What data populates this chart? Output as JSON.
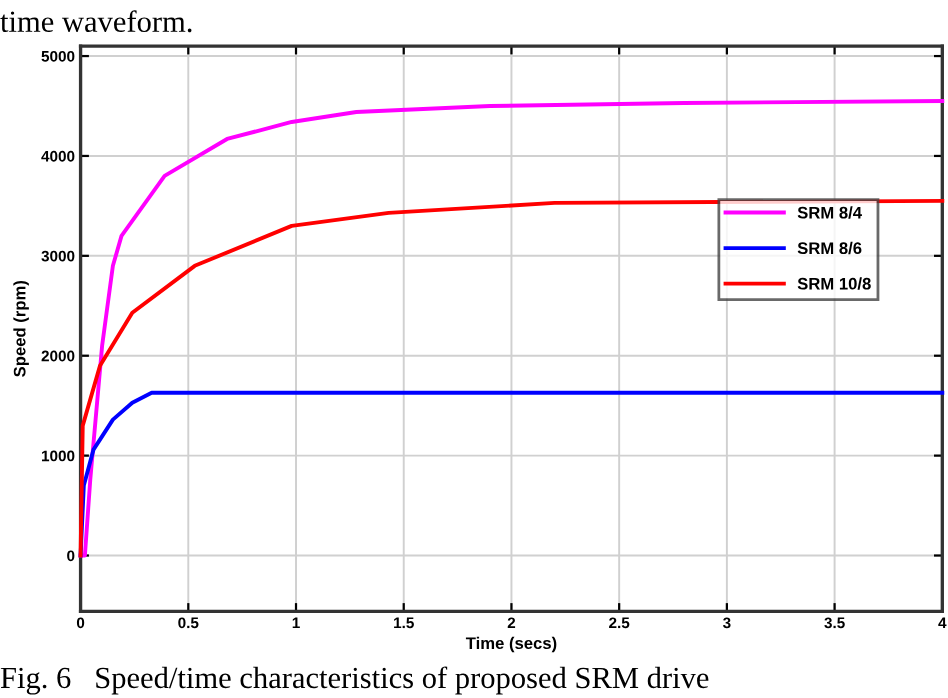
{
  "chart_data": {
    "type": "line",
    "xlabel": "Time (secs)",
    "ylabel": "Speed (rpm)",
    "xlim": [
      0,
      4
    ],
    "ylim": [
      -560,
      5100
    ],
    "xticks": [
      0,
      {
        "value": 0.5,
        "label": "0.5"
      },
      1,
      {
        "value": 1.5,
        "label": "1.5"
      },
      2,
      {
        "value": 2.5,
        "label": "2.5"
      },
      3,
      {
        "value": 3.5,
        "label": "3.5"
      },
      4
    ],
    "yticks": [
      0,
      1000,
      2000,
      3000,
      4000,
      5000
    ],
    "grid": true,
    "legend": "right",
    "marker": "none",
    "line_style": "solid",
    "annotations": [
      "time waveform.",
      "Fig. 6   Speed/time characteristics of proposed SRM drive"
    ],
    "series": [
      {
        "name": "SRM 8/4",
        "color": "#ff00ff",
        "x": [
          0,
          0.02,
          0.045,
          0.1,
          0.15,
          0.19,
          0.39,
          0.68,
          0.98,
          1.28,
          1.9,
          2.8,
          4
        ],
        "values": [
          0,
          0,
          760,
          2100,
          2900,
          3200,
          3800,
          4170,
          4340,
          4440,
          4500,
          4530,
          4550
        ]
      },
      {
        "name": "SRM 8/6",
        "color": "#0000ff",
        "x": [
          0,
          0.015,
          0.06,
          0.15,
          0.24,
          0.33,
          4
        ],
        "values": [
          0,
          700,
          1060,
          1360,
          1530,
          1630,
          1630
        ]
      },
      {
        "name": "SRM 10/8",
        "color": "#ff0000",
        "x": [
          0,
          0.01,
          0.09,
          0.24,
          0.53,
          0.98,
          1.43,
          2.2,
          4
        ],
        "values": [
          0,
          1300,
          1900,
          2430,
          2900,
          3300,
          3430,
          3530,
          3550
        ]
      }
    ]
  }
}
